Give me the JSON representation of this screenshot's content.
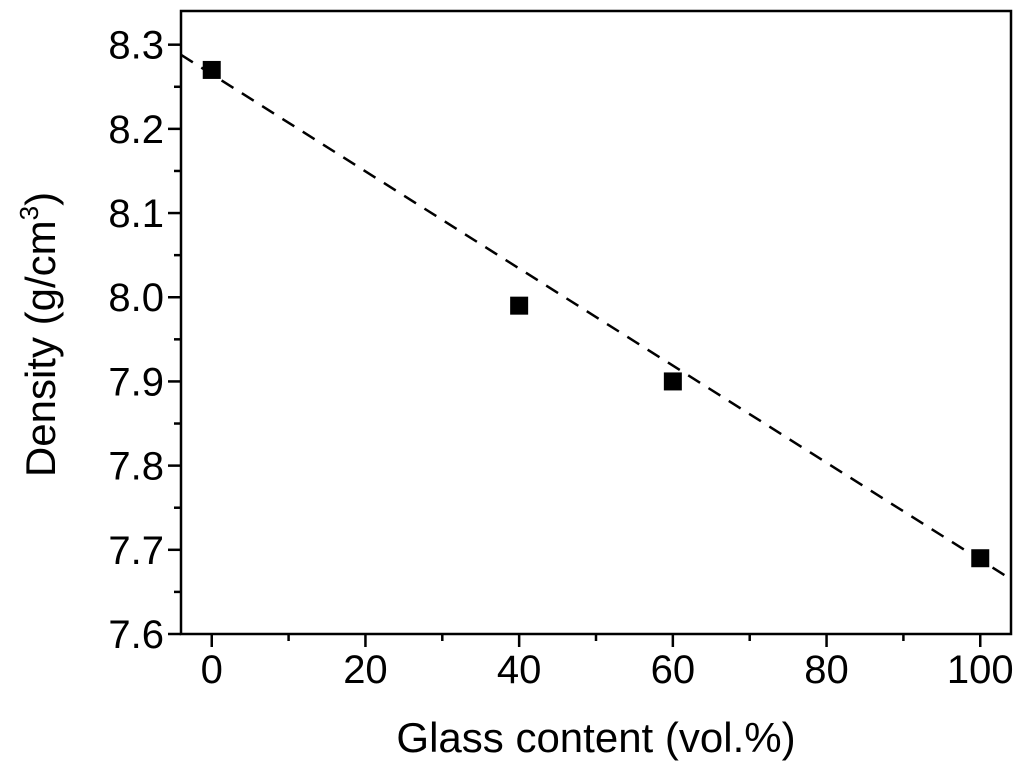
{
  "chart_data": {
    "type": "scatter",
    "xlabel": "Glass content (vol.%)",
    "ylabel_main": "Density (g/cm",
    "ylabel_sup": "3",
    "ylabel_close": ")",
    "xlim": [
      -4,
      104
    ],
    "ylim": [
      7.6,
      8.34
    ],
    "x_ticks": [
      0,
      20,
      40,
      60,
      80,
      100
    ],
    "x_tick_labels": [
      "0",
      "20",
      "40",
      "60",
      "80",
      "100"
    ],
    "x_minor_ticks": [
      10,
      30,
      50,
      70,
      90
    ],
    "y_ticks": [
      7.6,
      7.7,
      7.8,
      7.9,
      8.0,
      8.1,
      8.2,
      8.3
    ],
    "y_tick_labels": [
      "7.6",
      "7.7",
      "7.8",
      "7.9",
      "8.0",
      "8.1",
      "8.2",
      "8.3"
    ],
    "y_minor_ticks": [
      7.65,
      7.75,
      7.85,
      7.95,
      8.05,
      8.15,
      8.25
    ],
    "grid": false,
    "legend": "none",
    "series": [
      {
        "marker": "square",
        "color": "#000000",
        "points": [
          {
            "x": 0,
            "y": 8.27
          },
          {
            "x": 40,
            "y": 7.99
          },
          {
            "x": 60,
            "y": 7.9
          },
          {
            "x": 100,
            "y": 7.69
          }
        ]
      }
    ],
    "fit_line": {
      "style": "dashed",
      "color": "#000000",
      "x": [
        -4,
        104
      ],
      "y": [
        8.288,
        7.665
      ]
    }
  }
}
